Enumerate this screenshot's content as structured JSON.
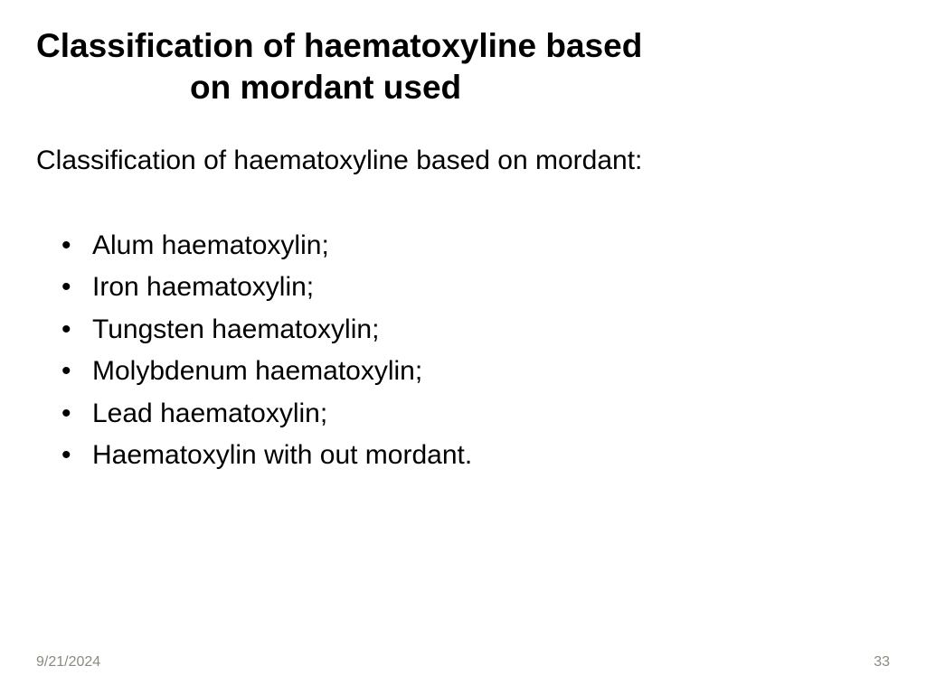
{
  "title": {
    "line1": "Classification of haematoxyline based",
    "line2": "on mordant used",
    "fontsize": 37,
    "color": "#000000",
    "weight": "bold"
  },
  "subtitle": {
    "text": "Classification of haematoxyline based on mordant:",
    "fontsize": 30,
    "color": "#000000"
  },
  "bullets": {
    "items": [
      "Alum haematoxylin;",
      "Iron haematoxylin;",
      "Tungsten haematoxylin;",
      "Molybdenum haematoxylin;",
      "Lead haematoxylin;",
      "Haematoxylin with out mordant."
    ],
    "fontsize": 30,
    "color": "#000000"
  },
  "footer": {
    "date": "9/21/2024",
    "page": "33",
    "fontsize": 16,
    "color": "#8a8a80"
  },
  "background_color": "#ffffff"
}
